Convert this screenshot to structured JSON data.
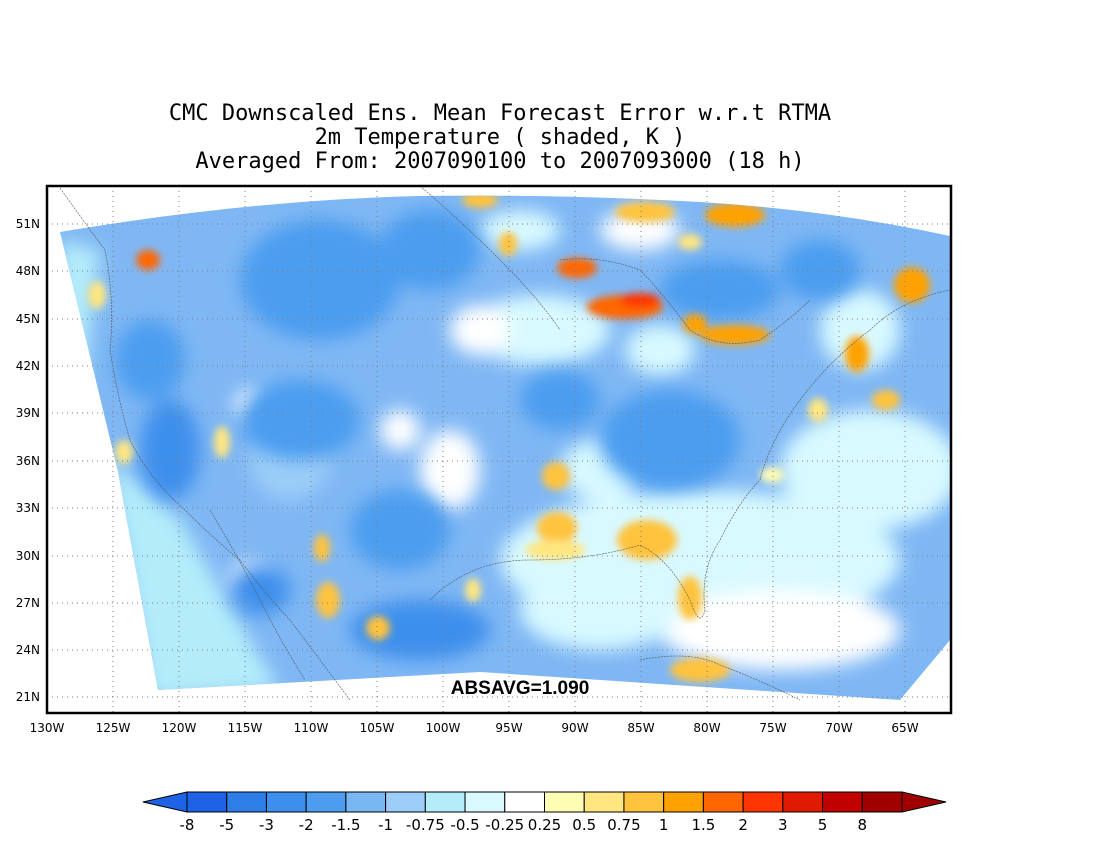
{
  "title": {
    "line1": "CMC Downscaled Ens. Mean Forecast Error w.r.t RTMA",
    "line2": "2m Temperature ( shaded, K )",
    "line3": "Averaged From: 2007090100 to 2007093000 (18 h)"
  },
  "stat_label": "ABSAVG=1.090",
  "map": {
    "lat_ticks": [
      "51N",
      "48N",
      "45N",
      "42N",
      "39N",
      "36N",
      "33N",
      "30N",
      "27N",
      "24N",
      "21N"
    ],
    "lon_ticks": [
      "130W",
      "125W",
      "120W",
      "115W",
      "110W",
      "105W",
      "100W",
      "95W",
      "90W",
      "85W",
      "80W",
      "75W",
      "70W",
      "65W"
    ],
    "lat_values": [
      51,
      48,
      45,
      42,
      39,
      36,
      33,
      30,
      27,
      24,
      21
    ],
    "lon_values": [
      -130,
      -125,
      -120,
      -115,
      -110,
      -105,
      -100,
      -95,
      -90,
      -85,
      -80,
      -75,
      -70,
      -65
    ],
    "lat_range": [
      20,
      52.3
    ],
    "lon_range": [
      -130,
      -61.5
    ],
    "grid": true,
    "colors": {
      "land_base": "#7fb7f4",
      "frame": "#000000",
      "grid": "#7f7f7f"
    }
  },
  "colorbar": {
    "labels": [
      "-8",
      "-5",
      "-3",
      "-2",
      "-1.5",
      "-1",
      "-0.75",
      "-0.5",
      "-0.25",
      "0.25",
      "0.5",
      "0.75",
      "1",
      "1.5",
      "2",
      "3",
      "5",
      "8"
    ],
    "colors": [
      "#1e62e6",
      "#2e7ee8",
      "#3d8fed",
      "#4c9df0",
      "#78b6f4",
      "#9ccdf8",
      "#b4ecfa",
      "#d8f9ff",
      "#ffffff",
      "#fffcb4",
      "#ffe680",
      "#ffc33e",
      "#ffa100",
      "#ff6600",
      "#ff3500",
      "#e01a00",
      "#c10000",
      "#a00000"
    ],
    "left_arrow_color": "#1e62e6",
    "right_arrow_color": "#a00000"
  }
}
